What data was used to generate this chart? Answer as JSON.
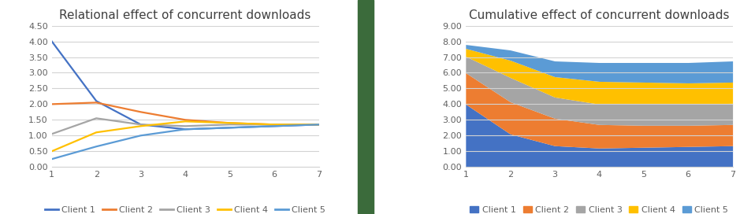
{
  "x": [
    1,
    2,
    3,
    4,
    5,
    6,
    7
  ],
  "client1": [
    4.0,
    2.1,
    1.35,
    1.2,
    1.25,
    1.3,
    1.35
  ],
  "client2": [
    2.0,
    2.05,
    1.75,
    1.5,
    1.4,
    1.35,
    1.35
  ],
  "client3": [
    1.05,
    1.55,
    1.35,
    1.3,
    1.35,
    1.35,
    1.35
  ],
  "client4": [
    0.5,
    1.1,
    1.3,
    1.45,
    1.4,
    1.35,
    1.35
  ],
  "client5": [
    0.25,
    0.65,
    1.0,
    1.2,
    1.25,
    1.3,
    1.35
  ],
  "colors": {
    "client1": "#4472C4",
    "client2": "#ED7D31",
    "client3": "#A5A5A5",
    "client4": "#FFC000",
    "client5": "#5B9BD5"
  },
  "left_title": "Relational effect of concurrent downloads",
  "right_title": "Cumulative effect of concurrent downloads",
  "left_ylim": [
    0,
    4.5
  ],
  "left_yticks": [
    0.0,
    0.5,
    1.0,
    1.5,
    2.0,
    2.5,
    3.0,
    3.5,
    4.0,
    4.5
  ],
  "right_ylim": [
    0,
    9.0
  ],
  "right_yticks": [
    0.0,
    1.0,
    2.0,
    3.0,
    4.0,
    5.0,
    6.0,
    7.0,
    8.0,
    9.0
  ],
  "legend_labels": [
    "Client 1",
    "Client 2",
    "Client 3",
    "Client 4",
    "Client 5"
  ],
  "background_color": "#FFFFFF",
  "divider_color": "#3B6B3B",
  "grid_color": "#D3D3D3",
  "title_fontsize": 11,
  "tick_fontsize": 8,
  "legend_fontsize": 8
}
